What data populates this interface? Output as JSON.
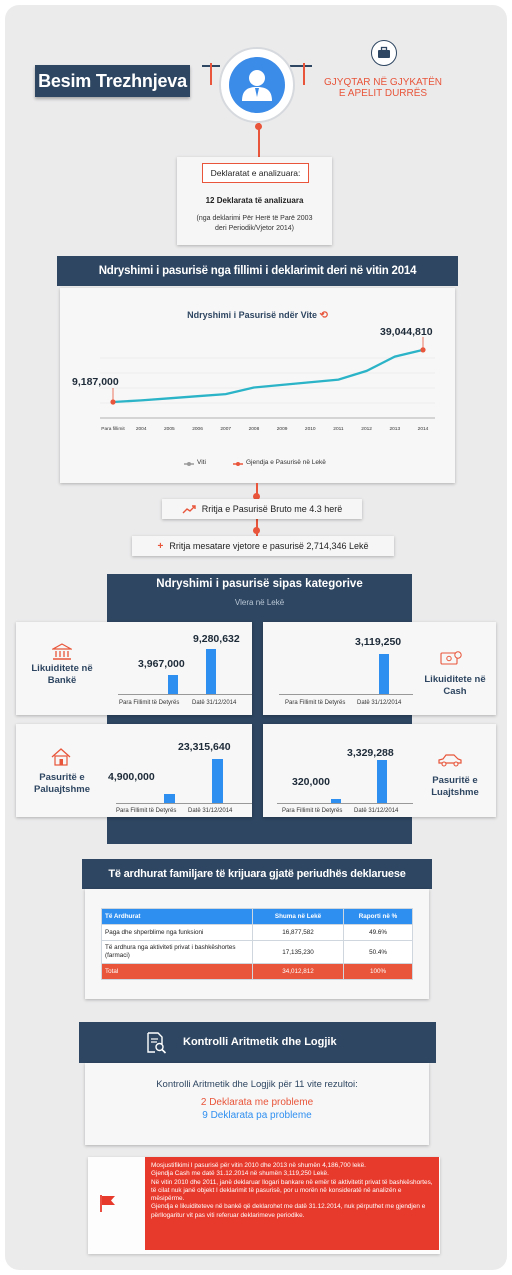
{
  "header": {
    "name": "Besim Trezhnjeva",
    "role": "GJYQTAR NË GJYKATËN E APELIT DURRËS"
  },
  "declarations": {
    "label": "Deklaratat e analizuara:",
    "count": "12 Deklarata të analizuara",
    "note": "(nga deklarimi Për Herë të Parë 2003 deri Periodik/Vjetor 2014)"
  },
  "wealth_change": {
    "heading": "Ndryshimi i pasurisë nga fillimi i deklarimit deri në vitin 2014",
    "chart_title": "Ndryshimi i Pasurisë ndër Vite",
    "start_label": "9,187,000",
    "end_label": "39,044,810",
    "legend_x": "Viti",
    "legend_series": "Gjendja e Pasurisë në Lekë",
    "growth_text": "Rritja e Pasurisë Bruto me 4.3 herë",
    "avg_text": "Rritja mesatare vjetore e pasurisë 2,714,346 Lekë"
  },
  "chart_data": [
    {
      "type": "line",
      "title": "Ndryshimi i Pasurisë ndër Vite",
      "x": [
        "Para fillimit",
        "2004",
        "2005",
        "2006",
        "2007",
        "2008",
        "2009",
        "2010",
        "2011",
        "2012",
        "2013",
        "2014"
      ],
      "series": [
        {
          "name": "Gjendja e Pasurisë në Lekë",
          "values": [
            9187000,
            10100000,
            11300000,
            12500000,
            13700000,
            17500000,
            19000000,
            20500000,
            22000000,
            27000000,
            35200000,
            39044810
          ]
        }
      ],
      "legend": [
        "Viti",
        "Gjendja e Pasurisë në Lekë"
      ],
      "ylim": [
        0,
        43000000
      ],
      "legend_position": "bottom",
      "grid": true
    },
    {
      "type": "bar",
      "title": "Likuiditete në Bankë",
      "categories": [
        "Para Fillimit të Detyrës",
        "Datë 31/12/2014"
      ],
      "values": [
        3967000,
        9280632
      ]
    },
    {
      "type": "bar",
      "title": "Likuiditete në Cash",
      "categories": [
        "Para Fillimit të Detyrës",
        "Datë 31/12/2014"
      ],
      "values": [
        0,
        3119250
      ]
    },
    {
      "type": "bar",
      "title": "Pasuritë e Paluajtshme",
      "categories": [
        "Para Fillimit të Detyrës",
        "Datë 31/12/2014"
      ],
      "values": [
        4900000,
        23315640
      ]
    },
    {
      "type": "bar",
      "title": "Pasuritë e Luajtshme",
      "categories": [
        "Para Fillimit të Detyrës",
        "Datë 31/12/2014"
      ],
      "values": [
        320000,
        3329288
      ]
    }
  ],
  "categories": {
    "heading": "Ndryshimi i pasurisë sipas kategorive",
    "subheading": "Vlera në Lekë",
    "x_before": "Para Fillimit të Detyrës",
    "x_after": "Datë 31/12/2014",
    "bank": {
      "title": "Likuiditete në Bankë",
      "before": "3,967,000",
      "after": "9,280,632"
    },
    "cash": {
      "title": "Likuiditete në Cash",
      "after": "3,119,250"
    },
    "immovable": {
      "title": "Pasuritë e Paluajtshme",
      "before": "4,900,000",
      "after": "23,315,640"
    },
    "movable": {
      "title": "Pasuritë e Luajtshme",
      "before": "320,000",
      "after": "3,329,288"
    }
  },
  "income": {
    "heading": "Të ardhurat familjare të krijuara gjatë periudhës deklaruese",
    "columns": [
      "Të Ardhurat",
      "Shuma në Lekë",
      "Raporti në %"
    ],
    "rows": [
      {
        "label": "Paga dhe shperblime nga funksioni",
        "amount": "16,877,582",
        "ratio": "49.6%"
      },
      {
        "label": "Të ardhura nga aktiviteti privat i bashkëshortes (farmaci)",
        "amount": "17,135,230",
        "ratio": "50.4%"
      }
    ],
    "total": {
      "label": "Total",
      "amount": "34,012,812",
      "ratio": "100%"
    }
  },
  "control": {
    "heading": "Kontrolli Aritmetik dhe Logjik",
    "summary": "Kontrolli Aritmetik dhe Logjik për 11 vite rezultoi:",
    "with_problems": "2 Deklarata me probleme",
    "without_problems": "9 Deklarata pa probleme"
  },
  "notes": {
    "p1": "Mosjustifikimi I pasurisë për vitin 2010 dhe 2013 në shumën 4,186,700 lekë.",
    "p2": "Gjendja Cash me datë 31.12.2014 në shumën 3,119,250 Lekë.",
    "p3": "Në vitin 2010 dhe 2011, janë deklaruar llogari bankare në emër të aktivitetit privat të bashkëshortes, të cilat nuk janë objekt I deklarimit të pasurisë, por u morën në konsideratë në analizën e mësipërme.",
    "p4": "Gjendja e likuiditeteve në bankë që deklarohet me datë 31.12.2014, nuk përputhet me gjendjen e përllogaritur vit pas viti referuar deklarimeve periodike."
  },
  "colors": {
    "navy": "#2e4661",
    "accent": "#e8553a",
    "bar": "#2f8ff0",
    "line": "#2bb3c8"
  }
}
